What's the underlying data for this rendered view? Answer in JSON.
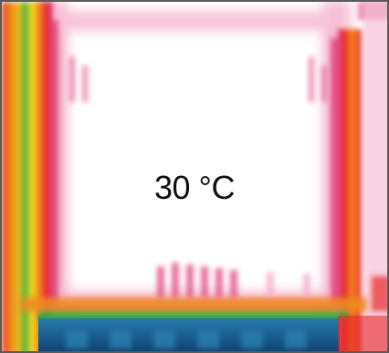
{
  "image": {
    "kind": "thermal-infrared",
    "temperature_label": "30 °C",
    "palette": {
      "cold": "#0b3f6e",
      "cool": "#2a7fb0",
      "green": "#3aa845",
      "yellow": "#f2e21a",
      "orange": "#f08a1c",
      "red": "#e8262a",
      "magenta": "#e0407a",
      "pink": "#f4a8c6",
      "hot": "#ffffff"
    }
  }
}
